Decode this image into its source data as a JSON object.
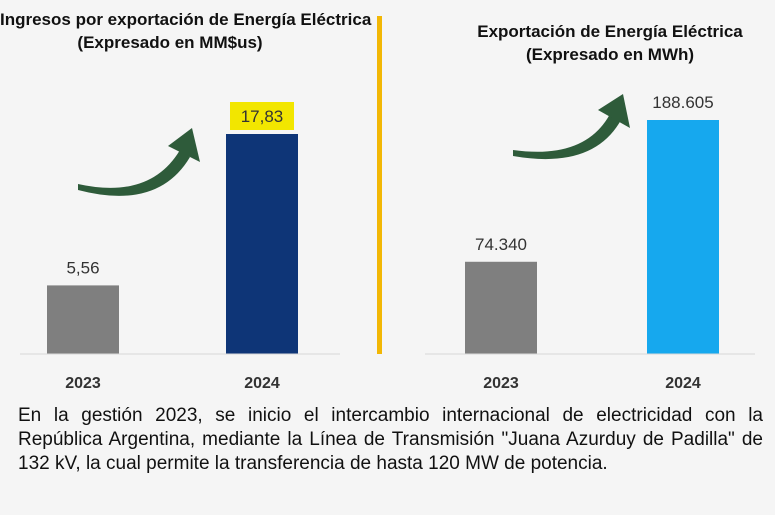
{
  "chart_data": [
    {
      "type": "bar",
      "title": "Ingresos por exportación de Energía Eléctrica\n(Expresado en MM$us)",
      "categories": [
        "2023",
        "2024"
      ],
      "values": [
        5.56,
        17.83
      ],
      "value_labels": [
        "5,56",
        "17,83"
      ],
      "colors": [
        "#7f7f7f",
        "#0e3577"
      ],
      "highlight_color": "#f2e600",
      "ylim": [
        0,
        17.83
      ],
      "xlabel": "",
      "ylabel": "",
      "grid": false,
      "legend": "none"
    },
    {
      "type": "bar",
      "title": "Exportación de Energía Eléctrica\n(Expresado en MWh)",
      "categories": [
        "2023",
        "2024"
      ],
      "values": [
        74340,
        188605
      ],
      "value_labels": [
        "74.340",
        "188.605"
      ],
      "colors": [
        "#7f7f7f",
        "#16a8ee"
      ],
      "ylim": [
        0,
        188605
      ],
      "xlabel": "",
      "ylabel": "",
      "grid": false,
      "legend": "none"
    }
  ],
  "arrow_icon": "curved-up-arrow-icon",
  "arrow_color": "#2e5b3a",
  "divider_color": "#f2b705",
  "footnote": "En la gestión 2023, se inicio el intercambio internacional de electricidad con la República Argentina, mediante la Línea de Transmisión \"Juana Azurduy de Padilla\" de 132 kV, la cual permite la transferencia de hasta 120 MW de potencia."
}
